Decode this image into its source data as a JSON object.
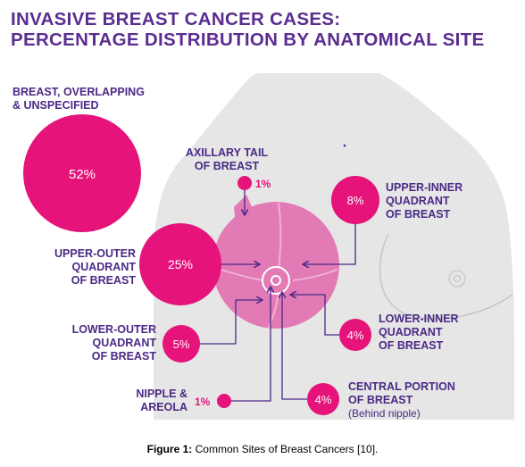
{
  "title": {
    "line1": "INVASIVE BREAST CANCER CASES:",
    "line2": "PERCENTAGE DISTRIBUTION BY ANATOMICAL SITE"
  },
  "colors": {
    "title": "#5b2d90",
    "magenta": "#e5137a",
    "pink_breast": "#e27ab5",
    "body_gray": "#e6e6e6",
    "line_gray": "#c6c6c6",
    "label": "#4a2a86"
  },
  "sites": {
    "overlapping": {
      "label_line1": "BREAST, OVERLAPPING",
      "label_line2": "& UNSPECIFIED",
      "value": "52%"
    },
    "axillary": {
      "label_line1": "AXILLARY TAIL",
      "label_line2": "OF BREAST",
      "value": "1%"
    },
    "upper_inner": {
      "label_line1": "UPPER-INNER",
      "label_line2": "QUADRANT",
      "label_line3": "OF BREAST",
      "value": "8%"
    },
    "upper_outer": {
      "label_line1": "UPPER-OUTER",
      "label_line2": "QUADRANT",
      "label_line3": "OF BREAST",
      "value": "25%"
    },
    "lower_inner": {
      "label_line1": "LOWER-INNER",
      "label_line2": "QUADRANT",
      "label_line3": "OF BREAST",
      "value": "4%"
    },
    "lower_outer": {
      "label_line1": "LOWER-OUTER",
      "label_line2": "QUADRANT",
      "label_line3": "OF BREAST",
      "value": "5%"
    },
    "nipple": {
      "label_line1": "NIPPLE &",
      "label_line2": "AREOLA",
      "value": "1%"
    },
    "central": {
      "label_line1": "CENTRAL PORTION",
      "label_line2": "OF BREAST",
      "label_line3": "(Behind nipple)",
      "value": "4%"
    }
  },
  "caption": {
    "prefix": "Figure 1:",
    "text": " Common Sites of Breast Cancers [10]."
  }
}
